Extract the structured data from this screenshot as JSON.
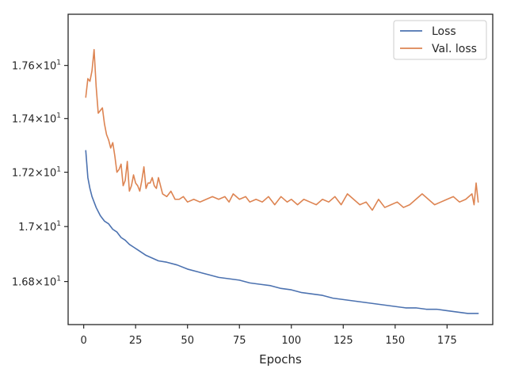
{
  "chart_data": {
    "type": "line",
    "xlabel": "Epochs",
    "ylabel": "",
    "xlim": [
      -7.5,
      197
    ],
    "ylim": [
      16.645,
      17.795
    ],
    "y_scale": "log",
    "grid": false,
    "legend_position": "top-right",
    "x_ticks": [
      {
        "value": 0,
        "label": "0"
      },
      {
        "value": 25,
        "label": "25"
      },
      {
        "value": 50,
        "label": "50"
      },
      {
        "value": 75,
        "label": "75"
      },
      {
        "value": 100,
        "label": "100"
      },
      {
        "value": 125,
        "label": "125"
      },
      {
        "value": 150,
        "label": "150"
      },
      {
        "value": 175,
        "label": "175"
      }
    ],
    "y_ticks": [
      {
        "value": 16.8,
        "mantissa": "1.68",
        "base": "10",
        "exponent": "1"
      },
      {
        "value": 17.0,
        "mantissa": "1.7",
        "base": "10",
        "exponent": "1"
      },
      {
        "value": 17.2,
        "mantissa": "1.72",
        "base": "10",
        "exponent": "1"
      },
      {
        "value": 17.4,
        "mantissa": "1.74",
        "base": "10",
        "exponent": "1"
      },
      {
        "value": 17.6,
        "mantissa": "1.76",
        "base": "10",
        "exponent": "1"
      }
    ],
    "series": [
      {
        "name": "Loss",
        "color": "#4c72b0",
        "x": [
          1,
          2,
          3,
          4,
          5,
          6,
          7,
          8,
          9,
          10,
          12,
          14,
          16,
          18,
          20,
          22,
          24,
          26,
          28,
          30,
          33,
          36,
          40,
          45,
          50,
          55,
          60,
          65,
          70,
          75,
          80,
          85,
          90,
          95,
          100,
          105,
          110,
          115,
          120,
          125,
          130,
          135,
          140,
          145,
          150,
          155,
          160,
          165,
          170,
          175,
          180,
          185,
          190
        ],
        "y": [
          17.28,
          17.18,
          17.14,
          17.11,
          17.09,
          17.07,
          17.055,
          17.04,
          17.03,
          17.02,
          17.01,
          16.99,
          16.98,
          16.96,
          16.95,
          16.935,
          16.925,
          16.915,
          16.905,
          16.895,
          16.885,
          16.875,
          16.87,
          16.86,
          16.845,
          16.835,
          16.825,
          16.815,
          16.81,
          16.805,
          16.795,
          16.79,
          16.785,
          16.775,
          16.77,
          16.76,
          16.755,
          16.75,
          16.74,
          16.735,
          16.73,
          16.725,
          16.72,
          16.715,
          16.71,
          16.705,
          16.705,
          16.7,
          16.7,
          16.695,
          16.69,
          16.685,
          16.685
        ]
      },
      {
        "name": "Val. loss",
        "color": "#dd8452",
        "x": [
          1,
          2,
          3,
          4,
          5,
          6,
          7,
          8,
          9,
          10,
          11,
          12,
          13,
          14,
          15,
          16,
          17,
          18,
          19,
          20,
          21,
          22,
          23,
          24,
          25,
          26,
          27,
          28,
          29,
          30,
          31,
          32,
          33,
          34,
          35,
          36,
          38,
          40,
          42,
          44,
          46,
          48,
          50,
          53,
          56,
          59,
          62,
          65,
          68,
          70,
          72,
          75,
          78,
          80,
          83,
          86,
          89,
          92,
          95,
          98,
          100,
          103,
          106,
          109,
          112,
          115,
          118,
          121,
          124,
          127,
          130,
          133,
          136,
          139,
          142,
          145,
          148,
          151,
          154,
          157,
          160,
          163,
          166,
          169,
          172,
          175,
          178,
          181,
          184,
          187,
          188,
          189,
          190
        ],
        "y": [
          17.48,
          17.55,
          17.54,
          17.58,
          17.66,
          17.52,
          17.42,
          17.43,
          17.44,
          17.38,
          17.34,
          17.32,
          17.29,
          17.31,
          17.26,
          17.2,
          17.21,
          17.23,
          17.15,
          17.17,
          17.24,
          17.13,
          17.15,
          17.19,
          17.16,
          17.15,
          17.13,
          17.17,
          17.22,
          17.14,
          17.16,
          17.16,
          17.18,
          17.15,
          17.14,
          17.18,
          17.12,
          17.11,
          17.13,
          17.1,
          17.1,
          17.11,
          17.09,
          17.1,
          17.09,
          17.1,
          17.11,
          17.1,
          17.11,
          17.09,
          17.12,
          17.1,
          17.11,
          17.09,
          17.1,
          17.09,
          17.11,
          17.08,
          17.11,
          17.09,
          17.1,
          17.08,
          17.1,
          17.09,
          17.08,
          17.1,
          17.09,
          17.11,
          17.08,
          17.12,
          17.1,
          17.08,
          17.09,
          17.06,
          17.1,
          17.07,
          17.08,
          17.09,
          17.07,
          17.08,
          17.1,
          17.12,
          17.1,
          17.08,
          17.09,
          17.1,
          17.11,
          17.09,
          17.1,
          17.12,
          17.08,
          17.16,
          17.09
        ]
      }
    ]
  }
}
